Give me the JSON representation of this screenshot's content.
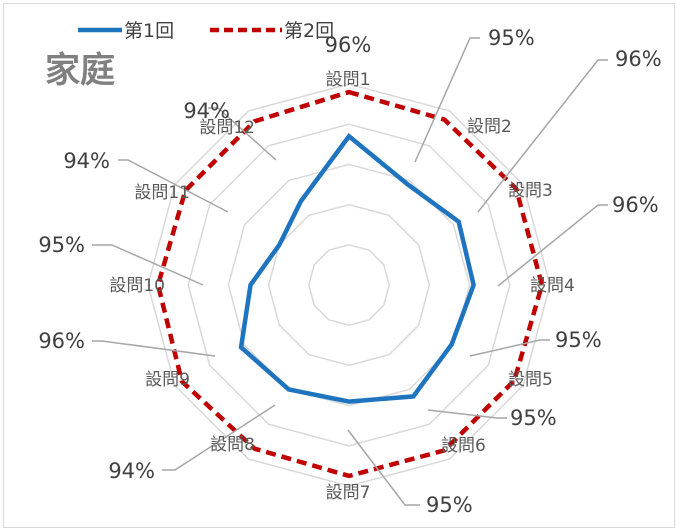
{
  "chart_data": {
    "type": "radar",
    "title": "家庭",
    "categories": [
      "設問1",
      "設問2",
      "設問3",
      "設問4",
      "設問5",
      "設問6",
      "設問7",
      "設問8",
      "設問9",
      "設問10",
      "設問11",
      "設問12"
    ],
    "series": [
      {
        "name": "第1回",
        "color": "#1f74c0",
        "values": [
          0.74,
          0.58,
          0.63,
          0.62,
          0.59,
          0.64,
          0.58,
          0.6,
          0.62,
          0.49,
          0.4,
          0.48
        ]
      },
      {
        "name": "第2回",
        "color": "#c00000",
        "values": [
          0.96,
          0.95,
          0.96,
          0.96,
          0.95,
          0.95,
          0.95,
          0.94,
          0.96,
          0.95,
          0.94,
          0.94
        ]
      }
    ],
    "data_labels": [
      "96%",
      "95%",
      "96%",
      "96%",
      "95%",
      "95%",
      "95%",
      "94%",
      "96%",
      "95%",
      "94%",
      "94%"
    ],
    "rlim": [
      0,
      1
    ],
    "grid": true,
    "legend_position": "top-left"
  }
}
